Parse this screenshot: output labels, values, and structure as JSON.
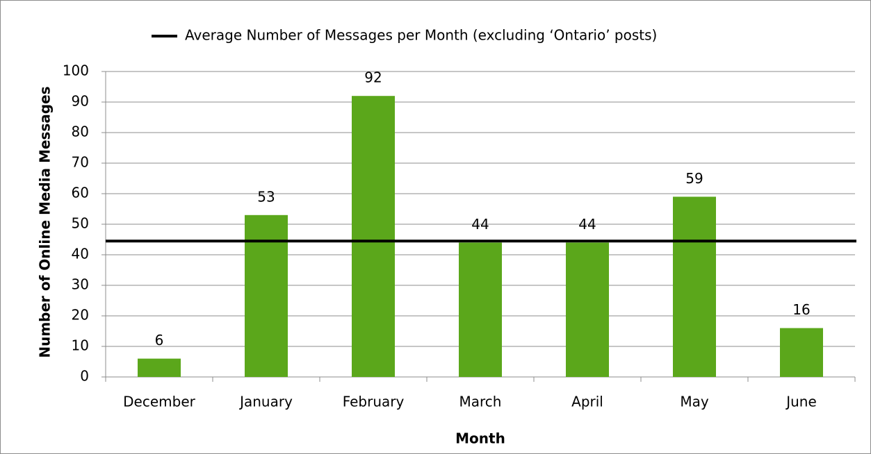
{
  "chart_data": {
    "type": "bar",
    "categories": [
      "December",
      "January",
      "February",
      "March",
      "April",
      "May",
      "June"
    ],
    "values": [
      6,
      53,
      92,
      44,
      44,
      59,
      16
    ],
    "color": "#5ba71b",
    "xlabel": "Month",
    "ylabel": "Number of Online Media Messages",
    "ylim": [
      0,
      100
    ],
    "yticks": [
      0,
      10,
      20,
      30,
      40,
      50,
      60,
      70,
      80,
      90,
      100
    ],
    "grid": true,
    "legend": "top",
    "reference_line": {
      "name": "Average Number of Messages per Month (excluding ‘Ontario’ posts)",
      "value": 44.5,
      "color": "#000000"
    }
  }
}
